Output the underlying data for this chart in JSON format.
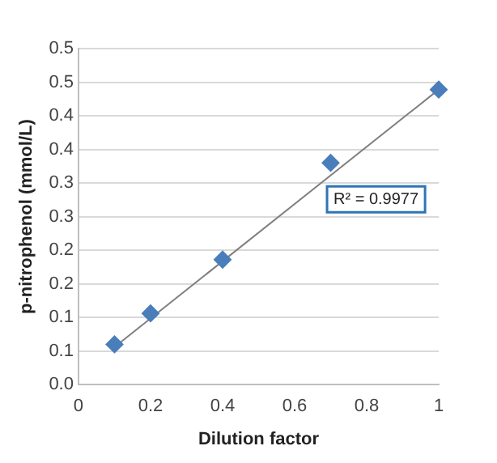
{
  "chart_data": {
    "type": "scatter",
    "xlabel": "Dilution factor",
    "ylabel": "p-nitrophenol (mmol/L)",
    "x": [
      0.1,
      0.2,
      0.4,
      0.7,
      1
    ],
    "series": [
      {
        "color": "#4a7ebb",
        "values": [
          0.06,
          0.106,
          0.186,
          0.33,
          0.439
        ],
        "marker": "diamond"
      },
      {
        "type": "line",
        "color": "#7f7f7f",
        "x": [
          0.1,
          1
        ],
        "values": [
          0.056,
          0.439
        ],
        "marker": "none"
      }
    ],
    "xlim": [
      0,
      1
    ],
    "xticks": [
      0,
      0.2,
      0.4,
      0.6,
      0.8,
      1
    ],
    "ylim": [
      0,
      0.5
    ],
    "yticks": [
      {
        "value": 0,
        "label": "0.0"
      },
      {
        "value": 0.05,
        "label": "0.1"
      },
      {
        "value": 0.1,
        "label": "0.1"
      },
      {
        "value": 0.15,
        "label": "0.2"
      },
      {
        "value": 0.2,
        "label": "0.2"
      },
      {
        "value": 0.25,
        "label": "0.3"
      },
      {
        "value": 0.3,
        "label": "0.3"
      },
      {
        "value": 0.35,
        "label": "0.4"
      },
      {
        "value": 0.4,
        "label": "0.4"
      },
      {
        "value": 0.45,
        "label": "0.5"
      },
      {
        "value": 0.5,
        "label": "0.5"
      }
    ],
    "grid": "y",
    "legend": false,
    "annotations": [
      "R² = 0.9977"
    ]
  }
}
